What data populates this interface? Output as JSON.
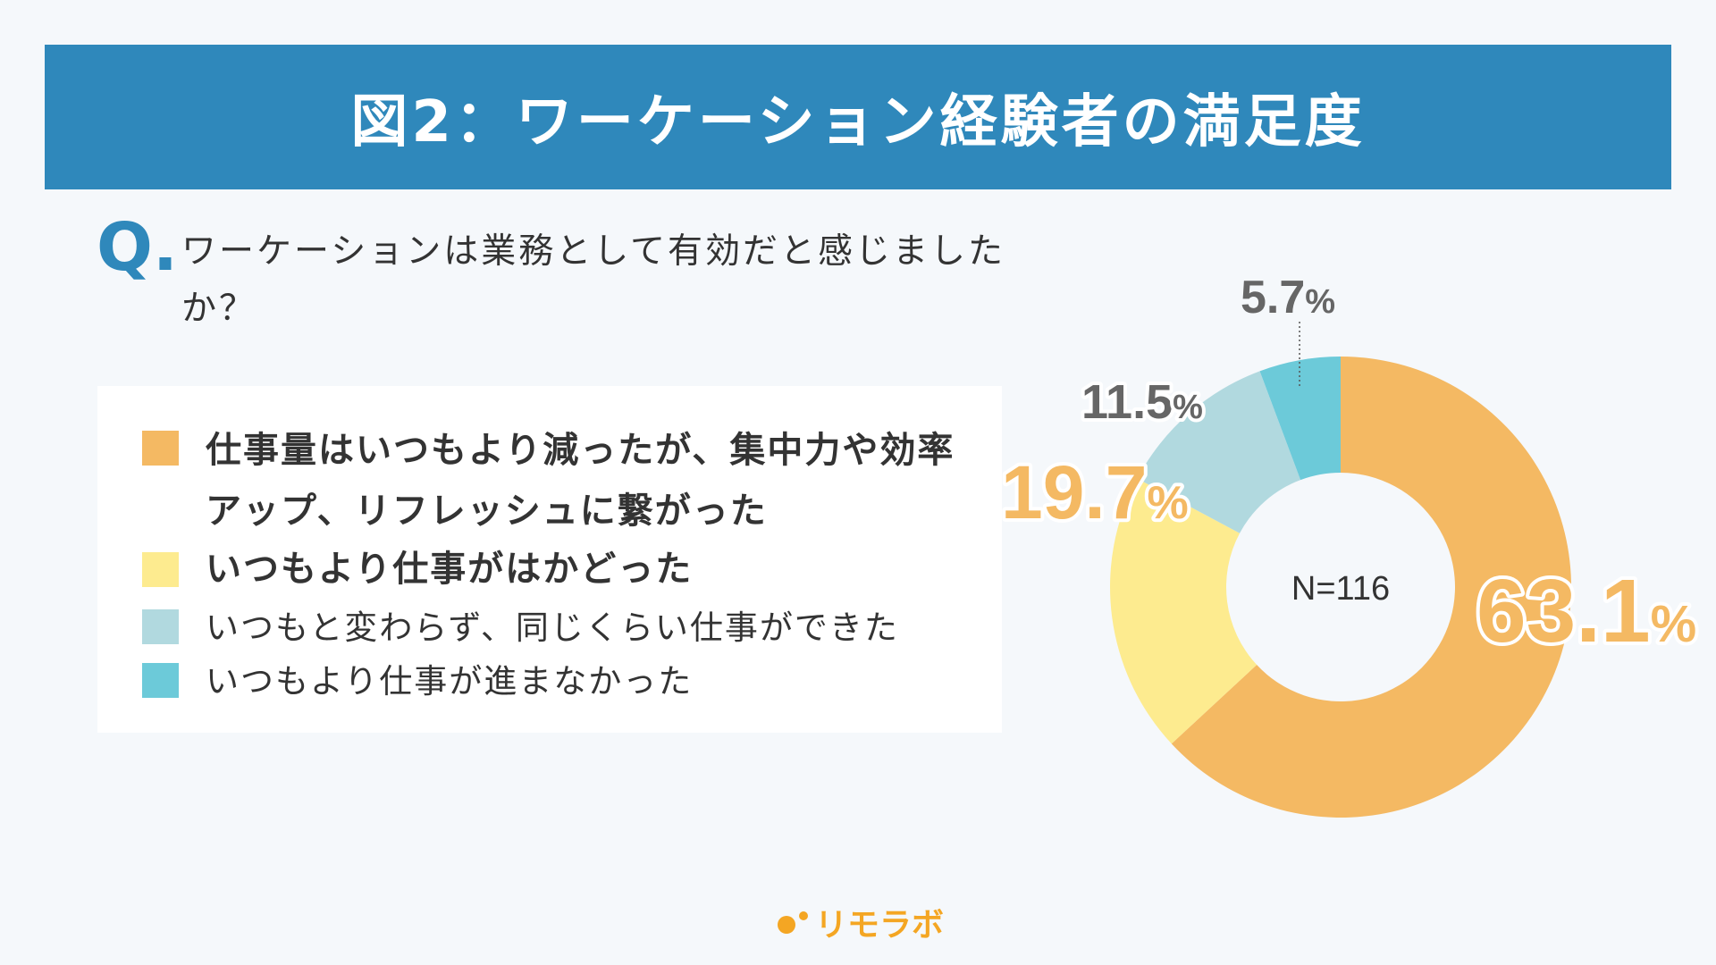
{
  "header": {
    "title": "図2：ワーケーション経験者の満足度"
  },
  "question": {
    "mark": "Q.",
    "text": "ワーケーションは業務として有効だと感じましたか？"
  },
  "chart_data": {
    "type": "pie",
    "center_label": "N=116",
    "categories": [
      "仕事量はいつもより減ったが、集中力や効率アップ、リフレッシュに繋がった",
      "いつもより仕事がはかどった",
      "いつもと変わらず、同じくらい仕事ができた",
      "いつもより仕事が進まなかった"
    ],
    "values": [
      63.1,
      19.7,
      11.5,
      5.7
    ],
    "value_labels": [
      "63.1",
      "19.7",
      "11.5",
      "5.7"
    ],
    "unit": "%",
    "colors": [
      "#f4b963",
      "#fdeb8f",
      "#b1d9df",
      "#6ccad9"
    ],
    "label_colors": [
      "#f4b963",
      "#f4b963",
      "#666666",
      "#666666"
    ]
  },
  "footer": {
    "logo_text": "リモラボ",
    "logo_color": "#f4a623"
  }
}
